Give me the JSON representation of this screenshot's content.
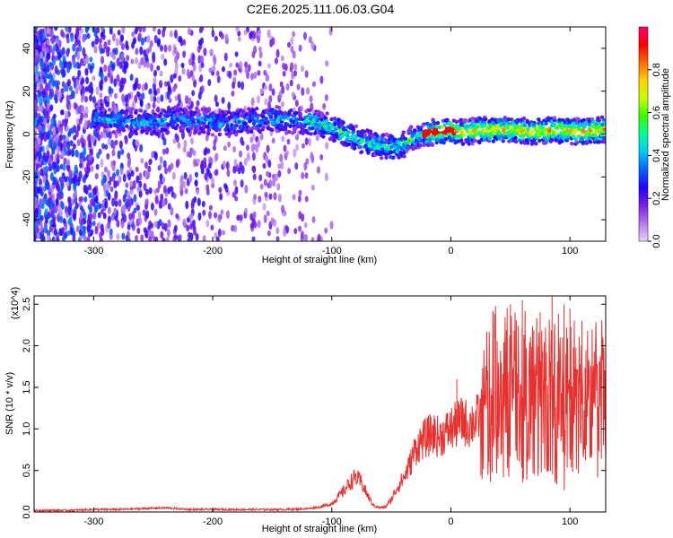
{
  "page": {
    "title": "C2E6.2025.111.06.03.G04"
  },
  "chart_data": [
    {
      "type": "heatmap",
      "xlabel": "Height of straight line (km)",
      "ylabel": "Frequency (Hz)",
      "xlim": [
        -350,
        130
      ],
      "ylim": [
        -50,
        50
      ],
      "xticks": [
        -300,
        -200,
        -100,
        0,
        100
      ],
      "yticks": [
        -40,
        -20,
        0,
        20,
        40
      ],
      "colorbar": {
        "label": "Normalized spectral amplitude",
        "range": [
          0,
          1
        ],
        "ticks": [
          0.0,
          0.2,
          0.4,
          0.6,
          0.8
        ],
        "tick_labels": [
          "0.0",
          "0.2",
          "0.4",
          "0.6",
          "0.8"
        ],
        "colormap": [
          "#e6d3f7",
          "#b57aec",
          "#7b1ee6",
          "#2400ff",
          "#0064ff",
          "#00c8ff",
          "#00ff9a",
          "#32ff00",
          "#c8ff00",
          "#ffd200",
          "#ff6a00",
          "#ff0000",
          "#ff0070"
        ]
      },
      "ridge": {
        "x": [
          -290,
          -270,
          -250,
          -230,
          -210,
          -190,
          -170,
          -150,
          -130,
          -110,
          -95,
          -80,
          -65,
          -55,
          -45,
          -35,
          -25,
          -10,
          0,
          10,
          30,
          50,
          70,
          90,
          110,
          130
        ],
        "y": [
          7,
          6,
          5,
          7,
          6,
          5,
          6,
          7,
          6,
          5,
          2,
          -2,
          -5,
          -6,
          -7,
          -3,
          0,
          1,
          2,
          1,
          2,
          2,
          1,
          2,
          1,
          2
        ]
      }
    },
    {
      "type": "line",
      "xlabel": "Height of straight line (km)",
      "ylabel": "SNR (10 * v/v)",
      "y_multiplier": "(x10^4)",
      "xlim": [
        -350,
        130
      ],
      "ylim": [
        0,
        2.6
      ],
      "xticks": [
        -300,
        -200,
        -100,
        0,
        100
      ],
      "yticks": [
        0.0,
        0.5,
        1.0,
        1.5,
        2.0,
        2.5
      ],
      "ytick_labels": [
        "0.0",
        "0.5",
        "1.0",
        "1.5",
        "2.0",
        "2.5"
      ],
      "color": "#e8302e",
      "series": [
        {
          "x": [
            -350,
            -320,
            -300,
            -280,
            -260,
            -240,
            -220,
            -200,
            -180,
            -160,
            -140,
            -120,
            -110,
            -100,
            -95,
            -90,
            -85,
            -80,
            -75,
            -70,
            -65,
            -60,
            -55,
            -50,
            -45,
            -40,
            -35,
            -30,
            -25,
            -20,
            -15,
            -10,
            -5,
            0,
            5,
            10,
            15,
            20,
            25,
            30,
            35,
            40,
            45,
            50,
            55,
            60,
            65,
            70,
            75,
            80,
            85,
            90,
            95,
            100,
            105,
            110,
            115,
            120,
            125,
            130
          ],
          "values": [
            0.02,
            0.02,
            0.03,
            0.03,
            0.04,
            0.05,
            0.03,
            0.03,
            0.03,
            0.03,
            0.03,
            0.04,
            0.06,
            0.1,
            0.18,
            0.25,
            0.35,
            0.42,
            0.35,
            0.2,
            0.08,
            0.05,
            0.06,
            0.15,
            0.3,
            0.4,
            0.55,
            0.75,
            0.85,
            0.9,
            0.95,
            0.9,
            0.95,
            1.0,
            1.05,
            1.1,
            1.05,
            1.1,
            1.15,
            1.25,
            1.35,
            1.45,
            1.4,
            1.5,
            1.45,
            1.4,
            1.35,
            1.4,
            1.3,
            1.45,
            1.35,
            1.3,
            1.2,
            1.35,
            1.25,
            1.3,
            1.35,
            1.3,
            1.35,
            1.35
          ]
        }
      ],
      "peak_x": [
        5,
        50,
        60,
        75,
        85,
        95,
        100,
        110
      ],
      "peak_y": [
        1.6,
        2.5,
        2.55,
        2.4,
        2.6,
        2.5,
        2.45,
        2.3
      ]
    }
  ]
}
